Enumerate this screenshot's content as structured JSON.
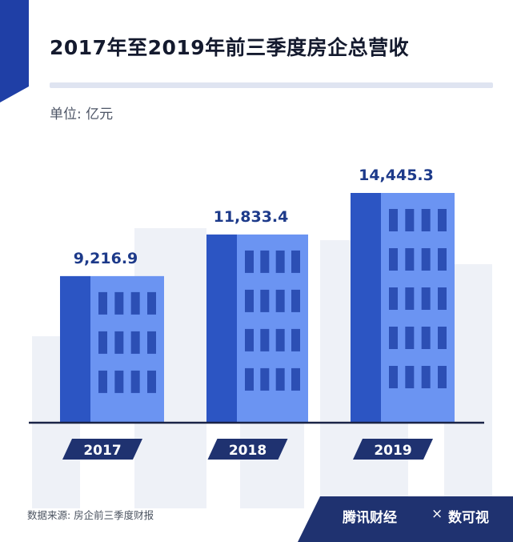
{
  "title": "2017年至2019年前三季度房企总营收",
  "unit_label": "单位: 亿元",
  "source_label": "数据来源: 房企前三季度财报",
  "brand": {
    "main": "腾讯财经",
    "separator": "×",
    "secondary": "数可视",
    "watermark": "腾讯财经"
  },
  "colors": {
    "bar_face": "#6b94f2",
    "bar_side": "#2c55c3",
    "window": "#2c4fb4",
    "title_bar": "#1f3fa6",
    "year_tab": "#1f3270",
    "value_text": "#1d3a8a"
  },
  "chart_data": {
    "type": "bar",
    "title": "2017年至2019年前三季度房企总营收",
    "ylabel": "单位: 亿元",
    "categories": [
      "2017",
      "2018",
      "2019"
    ],
    "values": [
      9216.9,
      11833.4,
      14445.3
    ],
    "value_labels": [
      "9,216.9",
      "11,833.4",
      "14,445.3"
    ],
    "ylim": [
      0,
      14445.3
    ],
    "grid": false,
    "legend": "none"
  }
}
